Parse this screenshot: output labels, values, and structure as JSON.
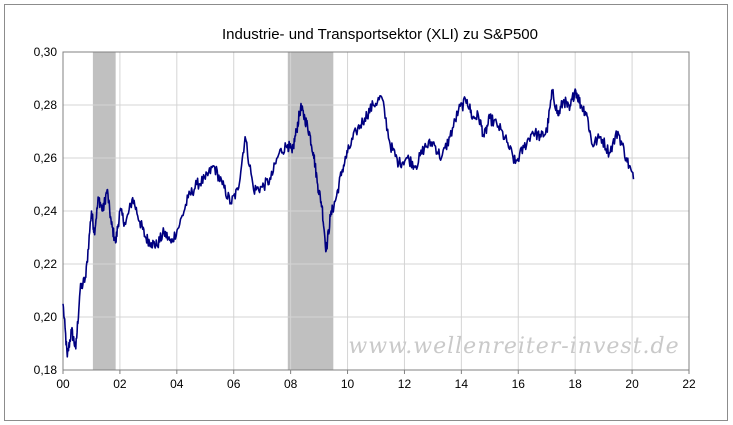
{
  "chart_data": {
    "type": "line",
    "title": "Industrie- und Transportsektor (XLI) zu S&P500",
    "xlabel": "",
    "ylabel": "",
    "xlim": [
      0,
      22
    ],
    "ylim": [
      0.18,
      0.3
    ],
    "x_ticks": [
      "00",
      "02",
      "04",
      "06",
      "08",
      "10",
      "12",
      "14",
      "16",
      "18",
      "20",
      "22"
    ],
    "y_ticks": [
      "0,18",
      "0,20",
      "0,22",
      "0,24",
      "0,26",
      "0,28",
      "0,30"
    ],
    "grid": true,
    "legend": "none",
    "watermark": "www.wellenreiter-invest.de",
    "line_color": "#000080",
    "shade_color": "#c0c0c0",
    "recessions": [
      {
        "start": 1.05,
        "end": 1.85
      },
      {
        "start": 7.9,
        "end": 9.5
      }
    ],
    "series": [
      {
        "x": [
          0.0,
          0.15,
          0.3,
          0.45,
          0.6,
          0.8,
          1.0,
          1.1,
          1.25,
          1.4,
          1.55,
          1.7,
          1.85,
          2.0,
          2.2,
          2.45,
          2.7,
          2.9,
          3.1,
          3.3,
          3.55,
          3.8,
          4.1,
          4.4,
          4.7,
          5.0,
          5.3,
          5.6,
          5.9,
          6.15,
          6.4,
          6.7,
          7.0,
          7.3,
          7.6,
          7.9,
          8.05,
          8.2,
          8.35,
          8.5,
          8.65,
          8.8,
          8.95,
          9.1,
          9.25,
          9.4,
          9.6,
          9.8,
          10.0,
          10.3,
          10.6,
          10.9,
          11.2,
          11.5,
          11.8,
          12.1,
          12.4,
          12.7,
          13.0,
          13.3,
          13.6,
          13.9,
          14.2,
          14.4,
          14.6,
          14.8,
          15.0,
          15.3,
          15.6,
          15.9,
          16.2,
          16.5,
          16.8,
          17.0,
          17.2,
          17.4,
          17.6,
          17.8,
          18.0,
          18.2,
          18.4,
          18.6,
          18.9,
          19.2,
          19.5,
          19.8,
          20.05
        ],
        "values": [
          0.205,
          0.185,
          0.195,
          0.188,
          0.21,
          0.215,
          0.24,
          0.232,
          0.245,
          0.24,
          0.248,
          0.235,
          0.228,
          0.24,
          0.235,
          0.245,
          0.236,
          0.23,
          0.228,
          0.227,
          0.232,
          0.228,
          0.235,
          0.245,
          0.25,
          0.252,
          0.257,
          0.25,
          0.243,
          0.248,
          0.268,
          0.248,
          0.249,
          0.252,
          0.262,
          0.265,
          0.262,
          0.27,
          0.279,
          0.275,
          0.27,
          0.262,
          0.25,
          0.242,
          0.225,
          0.238,
          0.245,
          0.255,
          0.262,
          0.27,
          0.275,
          0.28,
          0.283,
          0.265,
          0.258,
          0.26,
          0.257,
          0.264,
          0.266,
          0.26,
          0.268,
          0.278,
          0.282,
          0.275,
          0.276,
          0.268,
          0.275,
          0.272,
          0.266,
          0.258,
          0.264,
          0.27,
          0.268,
          0.27,
          0.285,
          0.276,
          0.282,
          0.278,
          0.286,
          0.28,
          0.277,
          0.265,
          0.268,
          0.262,
          0.27,
          0.26,
          0.252
        ]
      }
    ]
  }
}
